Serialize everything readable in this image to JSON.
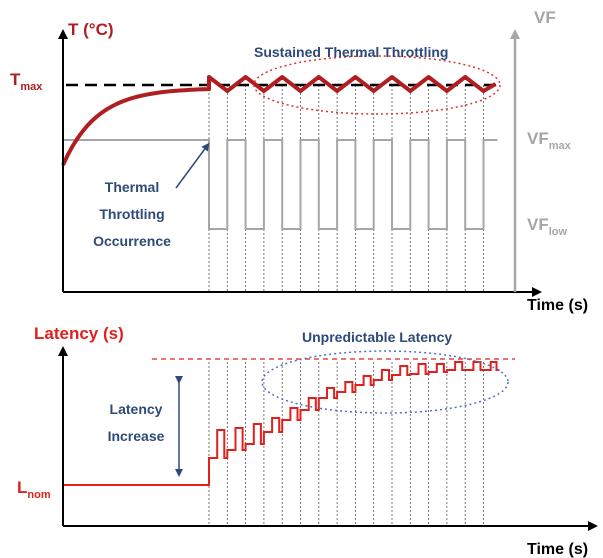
{
  "top_panel": {
    "y_axis_label": "T (°C)",
    "right_axis_label": "VF",
    "x_axis_label": "Time (s)",
    "tmax_label": {
      "base": "T",
      "sub": "max"
    },
    "vfmax_label": {
      "base": "VF",
      "sub": "max"
    },
    "vflow_label": {
      "base": "VF",
      "sub": "low"
    },
    "annotation_sustained": "Sustained Thermal Throttling",
    "annotation_occurrence": [
      "Thermal",
      "Throttling",
      "Occurrence"
    ]
  },
  "bottom_panel": {
    "y_axis_label": "Latency (s)",
    "x_axis_label": "Time (s)",
    "lnom_label": {
      "base": "L",
      "sub": "nom"
    },
    "annotation_unpredictable": "Unpredictable Latency",
    "annotation_increase": [
      "Latency",
      "Increase"
    ]
  },
  "colors": {
    "temperature": "#b01e22",
    "latency": "#e0201c",
    "annotation_text": "#2e4a78",
    "vf_signal": "#a6a6a6",
    "ellipse_top": "#d9342b",
    "ellipse_bottom": "#4a72c4",
    "axis": "#000000"
  }
}
